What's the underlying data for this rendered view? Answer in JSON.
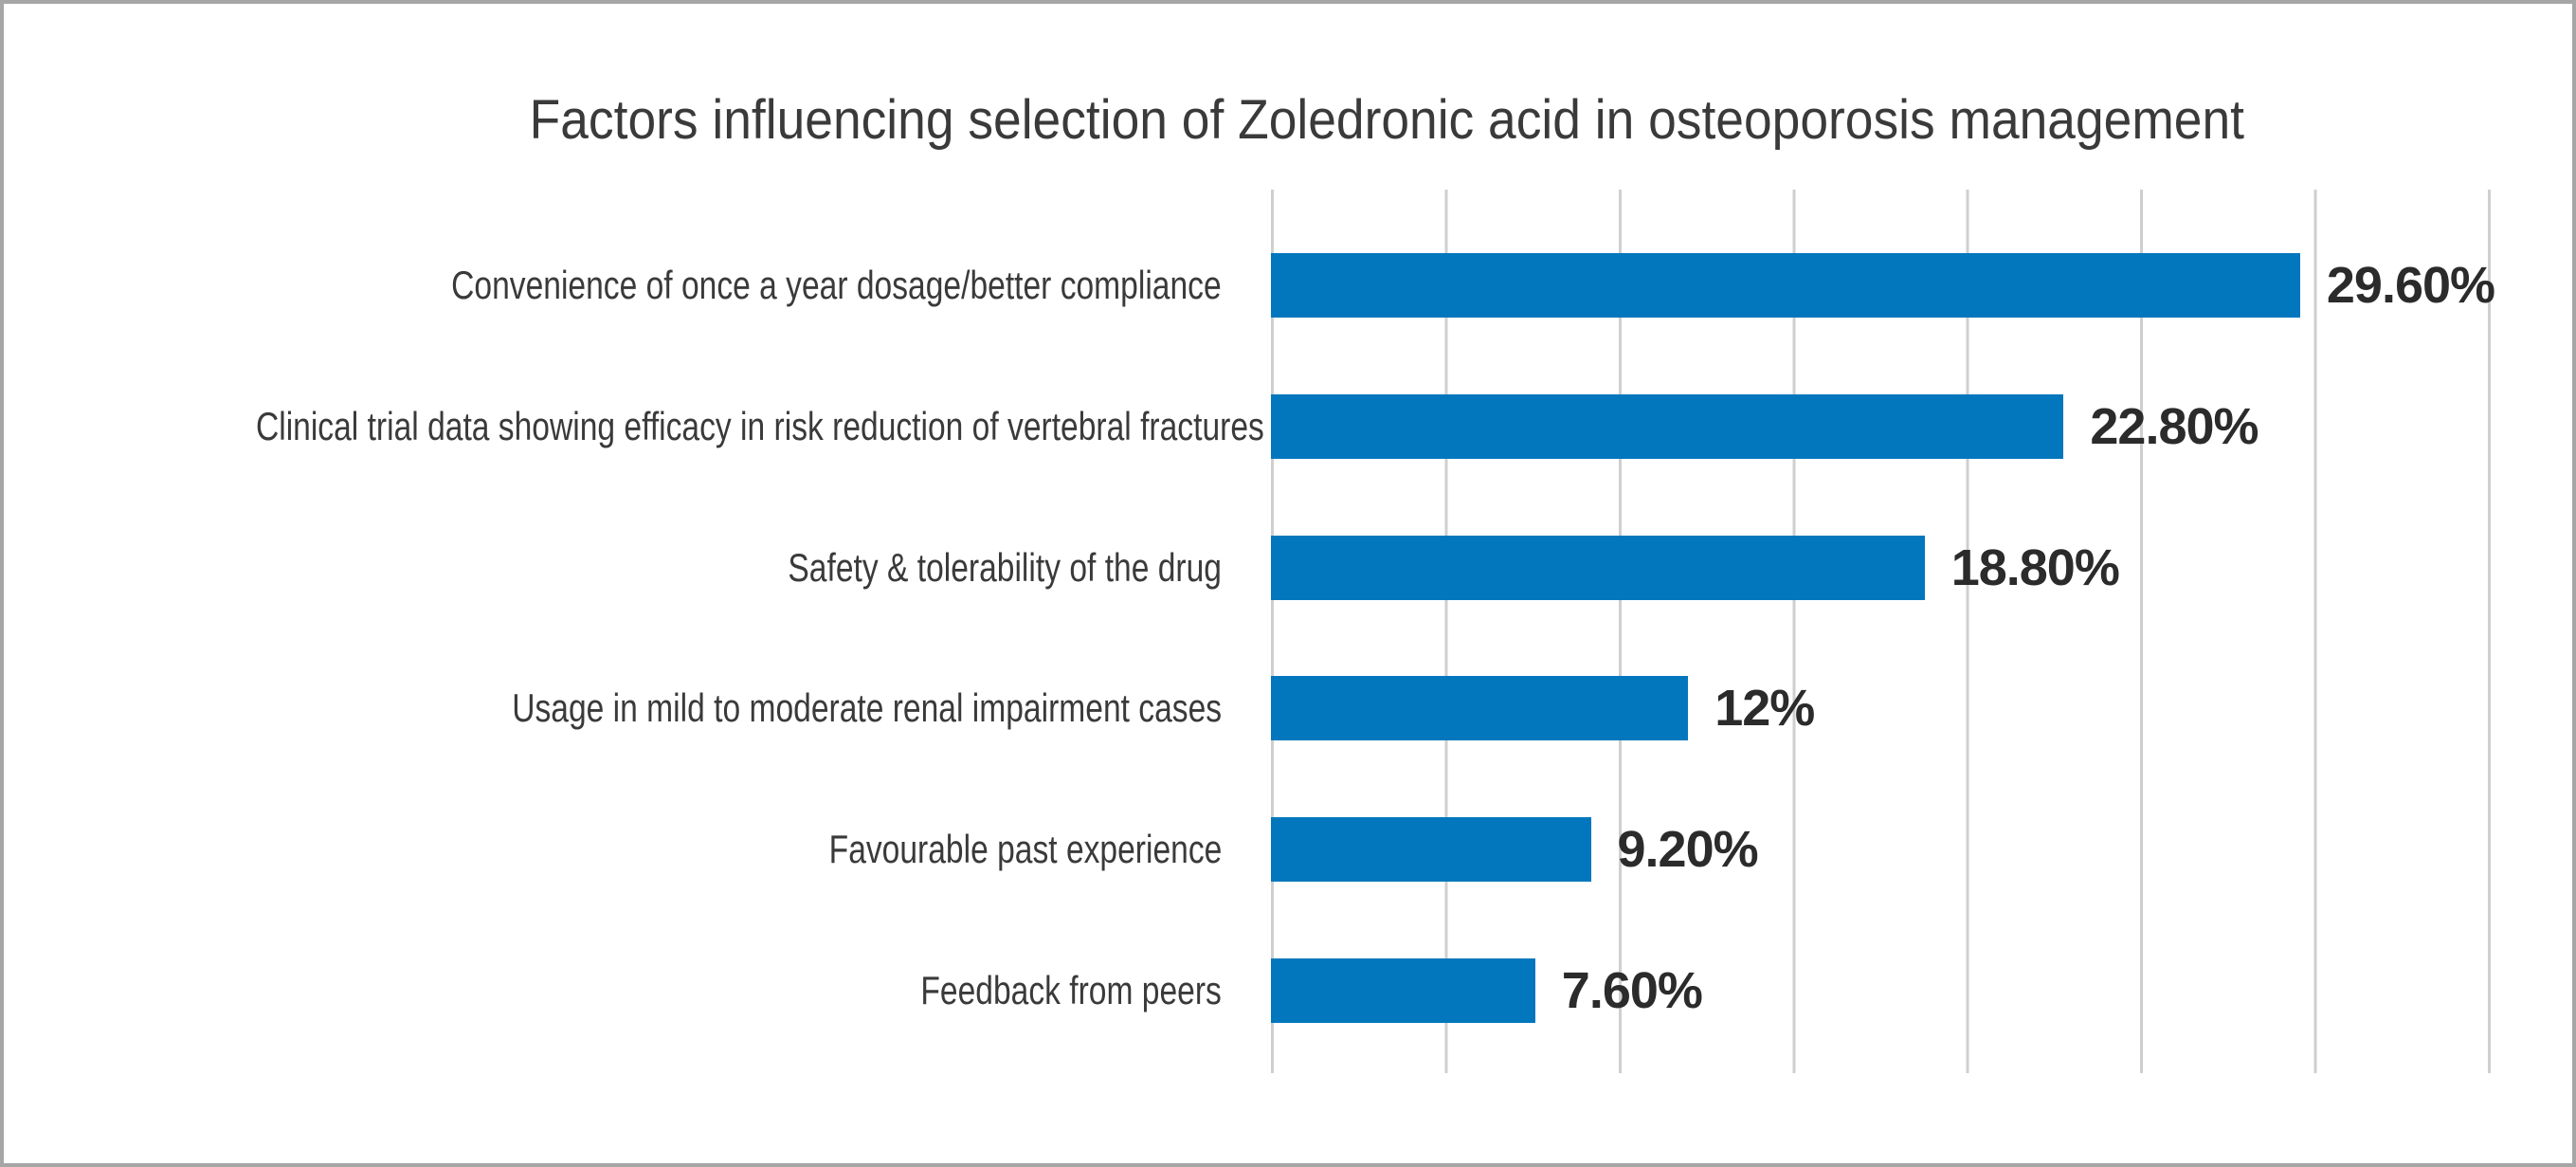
{
  "window": {
    "background": "#ffffff",
    "frame_border_color": "#a6a6a6"
  },
  "chart": {
    "colors": {
      "bar": "#0277bd",
      "gridline": "#cfcfcf",
      "title_text": "#3a3a3a",
      "category_text": "#3a3a3a",
      "value_text": "#2b2b2b"
    }
  },
  "chart_data": {
    "type": "bar",
    "orientation": "horizontal",
    "title": "Factors influencing selection of Zoledronic acid in osteoporosis management",
    "categories": [
      "Convenience of once a year dosage/better compliance",
      "Clinical trial data showing efficacy in risk reduction of vertebral fractures",
      "Safety & tolerability of the drug",
      "Usage in mild to moderate renal impairment cases",
      "Favourable past experience",
      "Feedback from peers"
    ],
    "values": [
      29.6,
      22.8,
      18.8,
      12,
      9.2,
      7.6
    ],
    "value_labels": [
      "29.60%",
      "22.80%",
      "18.80%",
      "12%",
      "9.20%",
      "7.60%"
    ],
    "xlabel": "",
    "ylabel": "",
    "xlim": [
      0,
      35
    ],
    "gridline_step": 5,
    "grid": "vertical-only",
    "tick_labels_shown": false,
    "legend": "none",
    "bar_color": "#0277bd"
  }
}
